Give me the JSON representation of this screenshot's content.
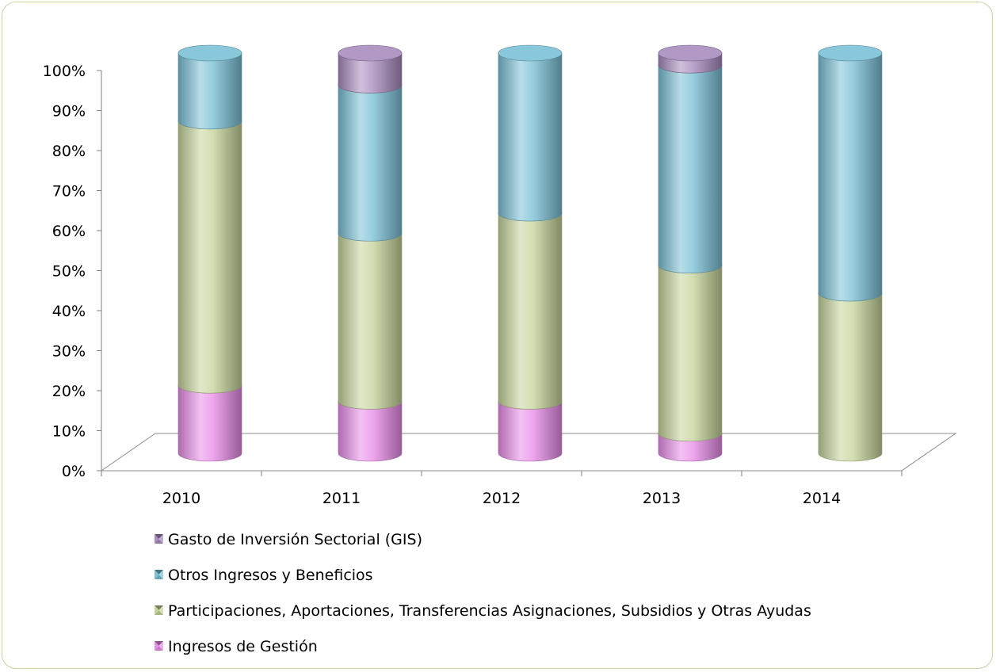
{
  "chart_data": {
    "type": "bar",
    "stacked": true,
    "percent_stacked": true,
    "three_d_cylinders": true,
    "categories": [
      "2010",
      "2011",
      "2012",
      "2013",
      "2014"
    ],
    "y_ticks": [
      "0%",
      "10%",
      "20%",
      "30%",
      "40%",
      "50%",
      "60%",
      "70%",
      "80%",
      "90%",
      "100%"
    ],
    "ylim": [
      0,
      100
    ],
    "legend_position": "bottom",
    "series": [
      {
        "name": "Ingresos de Gestión",
        "color": "#e98ee9",
        "values": [
          17,
          13,
          13,
          5,
          0
        ]
      },
      {
        "name": "Participaciones, Aportaciones, Transferencias Asignaciones, Subsidios y Otras Ayudas",
        "color": "#c7d59c",
        "values": [
          66,
          42,
          47,
          42,
          40
        ]
      },
      {
        "name": "Otros Ingresos y Beneficios",
        "color": "#7cc1d6",
        "values": [
          17,
          37,
          40,
          50,
          60
        ]
      },
      {
        "name": "Gasto de Inversión Sectorial (GIS)",
        "color": "#a98cbe",
        "values": [
          0,
          8,
          0,
          3,
          0
        ]
      }
    ],
    "legend_order": [
      "Gasto de Inversión Sectorial (GIS)",
      "Otros Ingresos y Beneficios",
      "Participaciones, Aportaciones, Transferencias Asignaciones, Subsidios y Otras Ayudas",
      "Ingresos de Gestión"
    ]
  }
}
